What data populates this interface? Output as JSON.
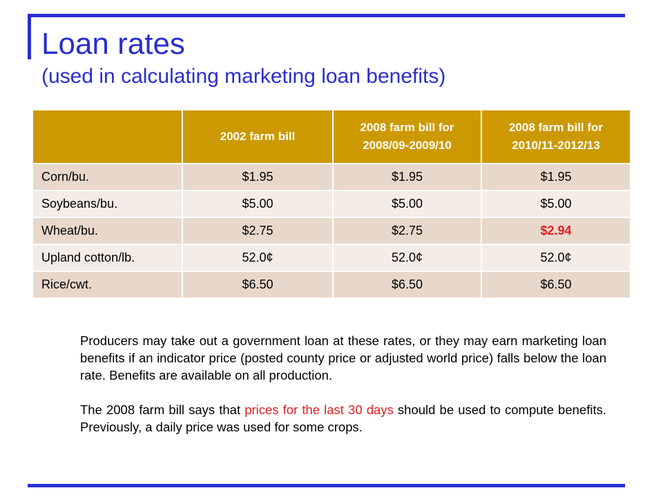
{
  "slide": {
    "title": "Loan rates",
    "subtitle": "(used in calculating marketing loan benefits)"
  },
  "table": {
    "headers": [
      "",
      "2002 farm bill",
      "2008 farm bill for\n2008/09-2009/10",
      "2008 farm bill for\n2010/11-2012/13"
    ],
    "rows": [
      {
        "crop": "Corn/bu.",
        "values": [
          "$1.95",
          "$1.95",
          "$1.95"
        ]
      },
      {
        "crop": "Soybeans/bu.",
        "values": [
          "$5.00",
          "$5.00",
          "$5.00"
        ]
      },
      {
        "crop": "Wheat/bu.",
        "values": [
          "$2.75",
          "$2.75",
          "$2.94"
        ]
      },
      {
        "crop": "Upland cotton/lb.",
        "values": [
          "52.0¢",
          "52.0¢",
          "52.0¢"
        ]
      },
      {
        "crop": "Rice/cwt.",
        "values": [
          "$6.50",
          "$6.50",
          "$6.50"
        ]
      }
    ],
    "highlight_color": "#e02020",
    "header_color": "#cc9900"
  },
  "notes": {
    "p1": "Producers may take out a government loan at these rates, or they may earn marketing loan benefits if an indicator price (posted county price or adjusted world price) falls below the loan rate.  Benefits are available on all production.",
    "p2_before": "The 2008 farm bill says that ",
    "p2_highlight": "prices for the last 30 days",
    "p2_after": " should be used to compute benefits.  Previously, a daily price was used for some crops."
  },
  "colors": {
    "accent": "#2a2ecd"
  }
}
